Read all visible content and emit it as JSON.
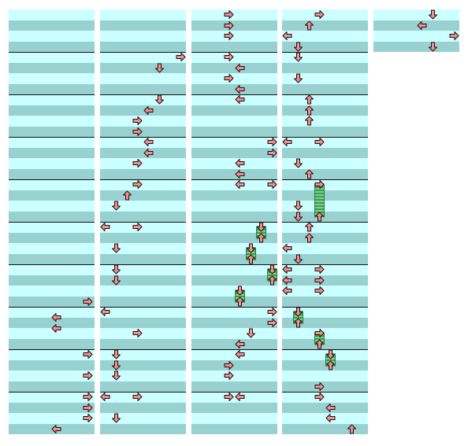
{
  "chart": {
    "beats_per_measure": 4,
    "rows_per_beat": 4,
    "note_color": "#ff8c8c",
    "note_outline": "#111111",
    "hold_color": "#3f9a54",
    "stripe_light": "#ccffff",
    "stripe_dark": "#99d0d0",
    "measure_line_color": "#111111",
    "columns": [
      {
        "name": "column-1",
        "measures": 2,
        "notes": [
          {
            "measure": 0,
            "row": 1,
            "lane": 3
          },
          {
            "measure": 0,
            "row": 2,
            "lane": 0
          },
          {
            "measure": 0,
            "row": 3,
            "lane": 0
          },
          {
            "measure": 0,
            "row": 7,
            "lane": 3
          },
          {
            "measure": 0,
            "row": 9,
            "lane": 3
          },
          {
            "measure": 0,
            "row": 10,
            "lane": 3
          },
          {
            "measure": 0,
            "row": 12,
            "lane": 3
          },
          {
            "measure": 0,
            "row": 14,
            "lane": 2
          },
          {
            "measure": 1,
            "row": 0,
            "lane": 1
          },
          {
            "measure": 1,
            "row": 1,
            "lane": 2
          },
          {
            "measure": 1,
            "row": 3,
            "lane": 0
          },
          {
            "measure": 1,
            "row": 10,
            "lane": 1
          }
        ],
        "holds": []
      },
      {
        "name": "column-2",
        "measures": 4,
        "notes": [],
        "holds": []
      },
      {
        "name": "column-3",
        "measures": 4,
        "notes": [],
        "holds": []
      },
      {
        "name": "column-4",
        "measures": 4,
        "notes": [],
        "holds": []
      },
      {
        "name": "column-5",
        "measures": 4,
        "notes": [],
        "holds": []
      }
    ]
  }
}
